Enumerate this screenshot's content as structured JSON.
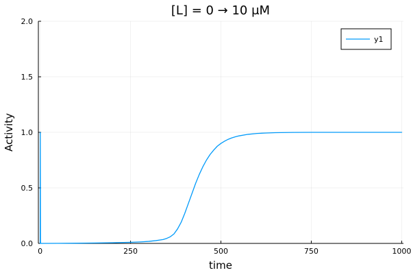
{
  "chart_data": {
    "type": "line",
    "title": "[L] = 0 → 10 μM",
    "xlabel": "time",
    "ylabel": "Activity",
    "xlim": [
      -5,
      1005
    ],
    "ylim": [
      0,
      2
    ],
    "xticks": [
      0,
      250,
      500,
      750,
      1000
    ],
    "xtick_labels": [
      "0",
      "250",
      "500",
      "750",
      "1000"
    ],
    "yticks": [
      0,
      0.5,
      1,
      1.5,
      2
    ],
    "ytick_labels": [
      "0.0",
      "0.5",
      "1.0",
      "1.5",
      "2.0"
    ],
    "grid": true,
    "legend_position": "top-right",
    "series": [
      {
        "name": "y1",
        "color": "#009AFA",
        "x": [
          0,
          0.3,
          0.6,
          0.9,
          1.2,
          2,
          5,
          50,
          100,
          150,
          200,
          250,
          280,
          300,
          320,
          340,
          350,
          360,
          370,
          380,
          390,
          400,
          410,
          420,
          430,
          440,
          450,
          460,
          470,
          480,
          490,
          500,
          510,
          520,
          530,
          540,
          550,
          575,
          600,
          625,
          650,
          700,
          750,
          800,
          900,
          1000
        ],
        "y": [
          0,
          1.0,
          0.5,
          0.02,
          0,
          0,
          0,
          0.001,
          0.002,
          0.004,
          0.006,
          0.01,
          0.014,
          0.018,
          0.025,
          0.035,
          0.045,
          0.06,
          0.085,
          0.13,
          0.19,
          0.27,
          0.36,
          0.45,
          0.54,
          0.62,
          0.69,
          0.75,
          0.8,
          0.84,
          0.875,
          0.9,
          0.92,
          0.937,
          0.95,
          0.96,
          0.968,
          0.982,
          0.99,
          0.994,
          0.997,
          0.999,
          1.0,
          1.0,
          1.0,
          1.0
        ]
      }
    ]
  }
}
